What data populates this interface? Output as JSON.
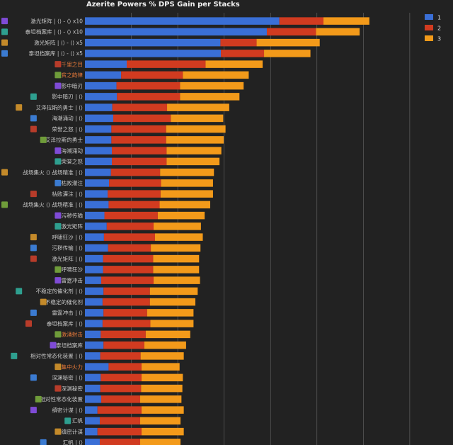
{
  "chart_data": {
    "type": "bar",
    "orientation": "horizontal",
    "stacked": true,
    "title": "Azerite Powers % DPS Gain per Stacks",
    "xlabel": "",
    "ylabel": "",
    "xlim": [
      0,
      0.72
    ],
    "grid": true,
    "legend_position": "top-right",
    "categories": [
      "激光矩阵 | ⟨⟩ - ⟨⟩ x10",
      "泰坦档案库 | ⟨⟩ - ⟨⟩ x10",
      "激光矩阵 | ⟨⟩ - ⟨⟩ x5",
      "泰坦档案库 | ⟨⟩ - ⟨⟩ x5",
      "千里之目",
      "贫之韵律",
      "影中暗刃",
      "影中暗刃 | ⟨⟩",
      "艾泽拉斯的勇士 | ⟨⟩",
      "海潮涌动 | ⟨⟩",
      "荣誉之怒 | ⟨⟩",
      "艾泽拉斯的勇士",
      "海潮涌动",
      "荣誉之怒",
      "战场集火 ⟨⟩ 战场精准 | ⟨⟩",
      "枯败灌注",
      "枯败灌注 | ⟨⟩",
      "战场集火 ⟨⟩ 战场精准 | ⟨⟩",
      "污秽传输",
      "激光矩阵",
      "呼啸狂沙 | ⟨⟩",
      "污秽传输 | ⟨⟩",
      "激光矩阵 | ⟨⟩",
      "呼啸狂沙",
      "雷霆冲击",
      "不稳定的催化剂 | ⟨⟩",
      "不稳定的催化剂",
      "雷霆冲击 | ⟨⟩",
      "泰坦档案库 | ⟨⟩",
      "激涌射击",
      "泰坦档案库",
      "相对性常态化装置 | ⟨⟩",
      "集中火力",
      "深渊秘密 | ⟨⟩",
      "深渊秘密",
      "相对性常态化装置",
      "缜密计谋 | ⟨⟩",
      "汇帆",
      "缜密计谋",
      "汇帆 | ⟨⟩"
    ],
    "label_colors": [
      "normal",
      "normal",
      "normal",
      "normal",
      "highlight",
      "highlight",
      "normal",
      "normal",
      "normal",
      "normal",
      "normal",
      "normal",
      "normal",
      "normal",
      "normal",
      "normal",
      "normal",
      "normal",
      "normal",
      "normal",
      "normal",
      "normal",
      "normal",
      "normal",
      "normal",
      "normal",
      "normal",
      "normal",
      "normal",
      "highlight",
      "normal",
      "normal",
      "highlight",
      "normal",
      "normal",
      "normal",
      "normal",
      "normal",
      "normal",
      "normal"
    ],
    "series": [
      {
        "name": "1",
        "color": "#3a6fd6",
        "values": [
          0.419,
          0.392,
          0.292,
          0.293,
          0.09,
          0.078,
          0.068,
          0.069,
          0.059,
          0.061,
          0.057,
          0.057,
          0.058,
          0.058,
          0.056,
          0.052,
          0.049,
          0.051,
          0.042,
          0.047,
          0.041,
          0.05,
          0.039,
          0.039,
          0.035,
          0.04,
          0.038,
          0.04,
          0.038,
          0.034,
          0.04,
          0.033,
          0.051,
          0.034,
          0.033,
          0.035,
          0.027,
          0.032,
          0.027,
          0.032
        ]
      },
      {
        "name": "2",
        "color": "#d13b20",
        "values": [
          0.095,
          0.106,
          0.078,
          0.093,
          0.17,
          0.133,
          0.137,
          0.136,
          0.118,
          0.124,
          0.118,
          0.118,
          0.118,
          0.118,
          0.106,
          0.112,
          0.114,
          0.11,
          0.115,
          0.101,
          0.11,
          0.092,
          0.108,
          0.108,
          0.113,
          0.1,
          0.102,
          0.094,
          0.103,
          0.097,
          0.088,
          0.087,
          0.071,
          0.088,
          0.088,
          0.084,
          0.095,
          0.087,
          0.095,
          0.087
        ]
      },
      {
        "name": "3",
        "color": "#f39a1a",
        "values": [
          0.099,
          0.094,
          0.136,
          0.1,
          0.123,
          0.142,
          0.137,
          0.128,
          0.134,
          0.113,
          0.128,
          0.124,
          0.118,
          0.114,
          0.116,
          0.112,
          0.113,
          0.109,
          0.101,
          0.102,
          0.103,
          0.107,
          0.099,
          0.099,
          0.1,
          0.103,
          0.098,
          0.1,
          0.093,
          0.096,
          0.09,
          0.093,
          0.082,
          0.089,
          0.089,
          0.089,
          0.091,
          0.087,
          0.091,
          0.087
        ]
      }
    ]
  },
  "colors": {
    "background": "#222222",
    "grid": "#6a6a6a",
    "label_text": "#c8c8c8",
    "label_highlight": "#e87a3a",
    "title_text": "#f0f0f0"
  }
}
